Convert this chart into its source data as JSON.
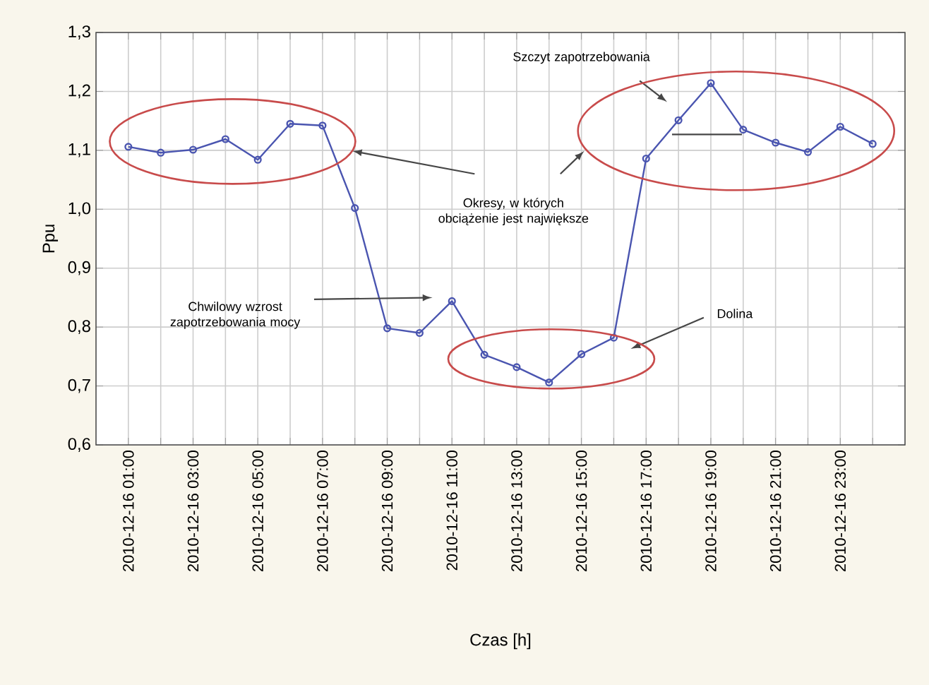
{
  "chart_data": {
    "type": "line",
    "xlabel": "Czas [h]",
    "ylabel": "Ppu",
    "categories": [
      "2010-12-16 01:00",
      null,
      "2010-12-16 03:00",
      null,
      "2010-12-16 05:00",
      null,
      "2010-12-16 07:00",
      null,
      "2010-12-16 09:00",
      null,
      "2010-12-16 11:00",
      null,
      "2010-12-16 13:00",
      null,
      "2010-12-16 15:00",
      null,
      "2010-12-16 17:00",
      null,
      "2010-12-16 19:00",
      null,
      "2010-12-16 21:00",
      null,
      "2010-12-16 23:00",
      null
    ],
    "series": [
      {
        "color": "#4a55b0",
        "values": [
          1.106,
          1.096,
          1.101,
          1.119,
          1.084,
          1.145,
          1.142,
          1.002,
          0.798,
          0.79,
          0.844,
          0.753,
          0.732,
          0.706,
          0.754,
          0.782,
          1.086,
          1.151,
          1.214,
          1.135,
          1.113,
          1.097,
          1.14,
          1.111
        ]
      }
    ],
    "ylim": [
      0.6,
      1.3
    ],
    "yticks": [
      {
        "value": 0.6,
        "label": "0,6"
      },
      {
        "value": 0.7,
        "label": "0,7"
      },
      {
        "value": 0.8,
        "label": "0,8"
      },
      {
        "value": 0.9,
        "label": "0,9"
      },
      {
        "value": 1.0,
        "label": "1,0"
      },
      {
        "value": 1.1,
        "label": "1,1"
      },
      {
        "value": 1.2,
        "label": "1,2"
      },
      {
        "value": 1.3,
        "label": "1,3"
      }
    ],
    "grid": true,
    "marker": "circle",
    "line_style": "solid",
    "annotations": [
      "Szczyt zapotrzebowania",
      "Okresy, w których obciążenie jest największe",
      "Chwilowy wzrost zapotrzebowania mocy",
      "Dolina"
    ]
  }
}
